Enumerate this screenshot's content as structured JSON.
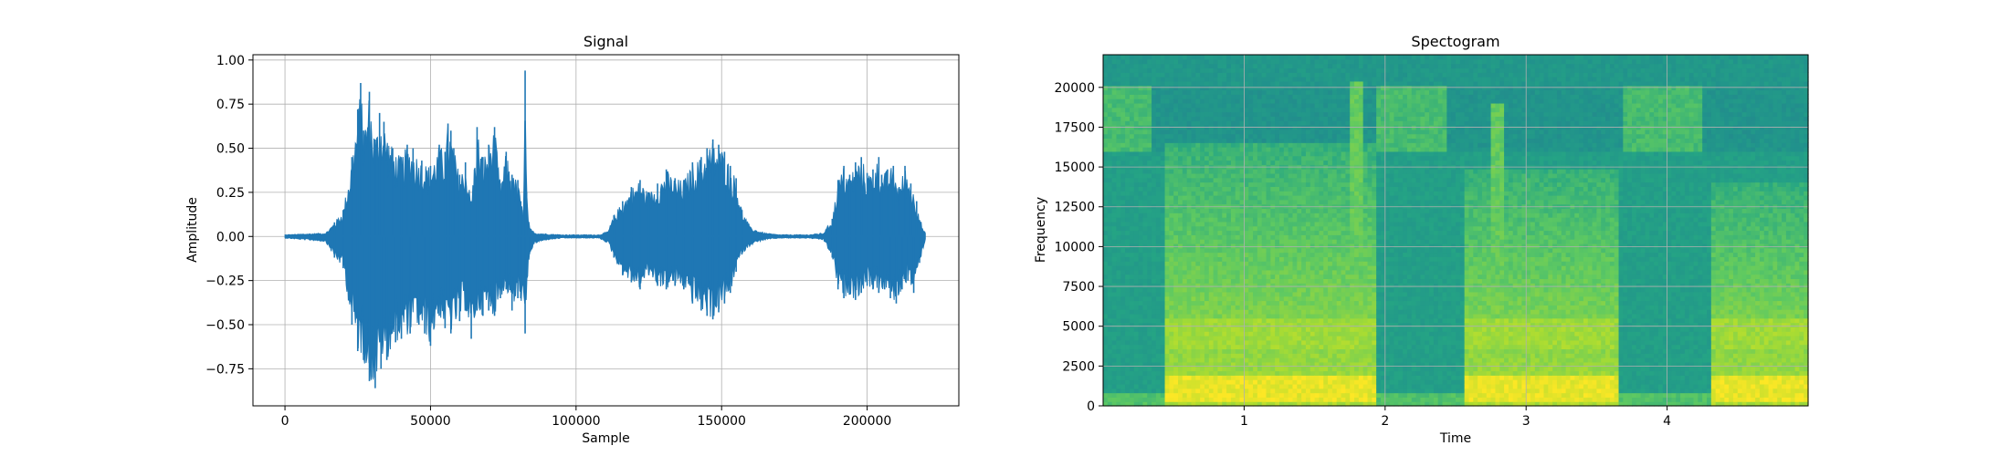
{
  "chart_data": [
    {
      "type": "line",
      "title": "Signal",
      "xlabel": "Sample",
      "ylabel": "Amplitude",
      "xlim": [
        -11000,
        231500
      ],
      "ylim": [
        -0.96,
        1.03
      ],
      "xticks": [
        0,
        50000,
        100000,
        150000,
        200000
      ],
      "xtick_labels": [
        "0",
        "50000",
        "100000",
        "150000",
        "200000"
      ],
      "yticks": [
        -0.75,
        -0.5,
        -0.25,
        0.0,
        0.25,
        0.5,
        0.75,
        1.0
      ],
      "ytick_labels": [
        "−0.75",
        "−0.50",
        "−0.25",
        "0.00",
        "0.25",
        "0.50",
        "0.75",
        "1.00"
      ],
      "grid": true,
      "color": "#1f77b4",
      "series": [
        {
          "envelope_upper": {
            "x": [
              0,
              14000,
              17000,
              20000,
              23000,
              25000,
              26000,
              27000,
              29000,
              31000,
              32500,
              34000,
              37000,
              40000,
              42000,
              44000,
              47000,
              50000,
              53000,
              55000,
              56000,
              57000,
              58000,
              60000,
              62000,
              64000,
              66000,
              68000,
              70000,
              72000,
              74000,
              76000,
              78000,
              80000,
              81000,
              82000,
              82500,
              83000,
              84000,
              86000,
              90000,
              95000,
              100000,
              104000,
              108000,
              111000,
              113000,
              116000,
              119000,
              122000,
              125000,
              128000,
              131000,
              134000,
              137000,
              140000,
              143000,
              145000,
              147000,
              149000,
              151000,
              153000,
              155000,
              157000,
              160000,
              163000,
              165000,
              167000,
              170000,
              175000,
              180000,
              185000,
              188000,
              190000,
              192000,
              194000,
              196000,
              198000,
              200000,
              202000,
              204000,
              205000,
              207000,
              209000,
              211000,
              213000,
              215000,
              217000,
              219000,
              220000
            ],
            "y": [
              0.01,
              0.02,
              0.08,
              0.15,
              0.45,
              0.72,
              0.87,
              0.6,
              0.82,
              0.55,
              0.7,
              0.65,
              0.5,
              0.45,
              0.52,
              0.5,
              0.43,
              0.4,
              0.52,
              0.48,
              0.64,
              0.6,
              0.5,
              0.35,
              0.42,
              0.2,
              0.62,
              0.45,
              0.52,
              0.62,
              0.3,
              0.48,
              0.35,
              0.32,
              0.2,
              0.15,
              0.94,
              0.25,
              0.05,
              0.02,
              0.015,
              0.01,
              0.01,
              0.01,
              0.01,
              0.03,
              0.12,
              0.2,
              0.28,
              0.32,
              0.25,
              0.3,
              0.38,
              0.33,
              0.32,
              0.42,
              0.45,
              0.5,
              0.55,
              0.52,
              0.48,
              0.4,
              0.33,
              0.15,
              0.05,
              0.03,
              0.02,
              0.015,
              0.01,
              0.01,
              0.01,
              0.02,
              0.1,
              0.32,
              0.4,
              0.35,
              0.42,
              0.45,
              0.36,
              0.38,
              0.45,
              0.35,
              0.38,
              0.4,
              0.28,
              0.4,
              0.3,
              0.2,
              0.05,
              0.02
            ]
          },
          "envelope_lower": {
            "x": [
              0,
              14000,
              17000,
              20000,
              23000,
              25000,
              27000,
              29000,
              31000,
              33000,
              35000,
              38000,
              40000,
              43000,
              46000,
              48000,
              50000,
              53000,
              55000,
              57000,
              60000,
              62000,
              64000,
              66000,
              68000,
              70000,
              72000,
              74000,
              76000,
              78000,
              80000,
              81000,
              82500,
              84000,
              86000,
              90000,
              95000,
              100000,
              104000,
              108000,
              111000,
              113000,
              116000,
              119000,
              122000,
              125000,
              128000,
              131000,
              134000,
              137000,
              140000,
              143000,
              145000,
              147000,
              149000,
              151000,
              153000,
              155000,
              157000,
              160000,
              163000,
              165000,
              167000,
              170000,
              175000,
              180000,
              185000,
              188000,
              190000,
              192000,
              194000,
              196000,
              198000,
              200000,
              202000,
              204000,
              206000,
              208000,
              210000,
              212000,
              214000,
              216000,
              218000,
              220000
            ],
            "y": [
              -0.01,
              -0.03,
              -0.12,
              -0.18,
              -0.5,
              -0.65,
              -0.7,
              -0.82,
              -0.86,
              -0.75,
              -0.7,
              -0.6,
              -0.58,
              -0.55,
              -0.5,
              -0.55,
              -0.62,
              -0.45,
              -0.52,
              -0.55,
              -0.48,
              -0.42,
              -0.58,
              -0.42,
              -0.45,
              -0.42,
              -0.45,
              -0.35,
              -0.3,
              -0.42,
              -0.35,
              -0.35,
              -0.55,
              -0.1,
              -0.04,
              -0.02,
              -0.01,
              -0.01,
              -0.01,
              -0.01,
              -0.04,
              -0.12,
              -0.22,
              -0.26,
              -0.3,
              -0.22,
              -0.28,
              -0.3,
              -0.28,
              -0.3,
              -0.38,
              -0.42,
              -0.45,
              -0.47,
              -0.43,
              -0.38,
              -0.32,
              -0.2,
              -0.1,
              -0.05,
              -0.03,
              -0.02,
              -0.015,
              -0.01,
              -0.01,
              -0.01,
              -0.02,
              -0.12,
              -0.3,
              -0.35,
              -0.33,
              -0.36,
              -0.32,
              -0.28,
              -0.3,
              -0.32,
              -0.3,
              -0.35,
              -0.38,
              -0.3,
              -0.25,
              -0.32,
              -0.15,
              -0.02
            ]
          }
        }
      ]
    },
    {
      "type": "heatmap",
      "title": "Spectogram",
      "xlabel": "Time",
      "ylabel": "Frequency",
      "xlim": [
        0,
        5.0
      ],
      "ylim": [
        0,
        22050
      ],
      "xticks": [
        1,
        2,
        3,
        4
      ],
      "xtick_labels": [
        "1",
        "2",
        "3",
        "4"
      ],
      "yticks": [
        0,
        2500,
        5000,
        7500,
        10000,
        12500,
        15000,
        17500,
        20000
      ],
      "ytick_labels": [
        "0",
        "2500",
        "5000",
        "7500",
        "10000",
        "12500",
        "15000",
        "17500",
        "20000"
      ],
      "grid": true,
      "colormap": "viridis",
      "speech_segments": [
        {
          "t_start": 0.45,
          "t_end": 1.95,
          "max_freq": 16500
        },
        {
          "t_start": 2.55,
          "t_end": 3.65,
          "max_freq": 15000
        },
        {
          "t_start": 4.3,
          "t_end": 5.0,
          "max_freq": 14000
        }
      ],
      "high_band_segments": [
        {
          "t_start": 0.0,
          "t_end": 0.35,
          "f_low": 16000,
          "f_high": 20000
        },
        {
          "t_start": 1.95,
          "t_end": 2.45,
          "f_low": 16000,
          "f_high": 20000
        },
        {
          "t_start": 3.7,
          "t_end": 4.25,
          "f_low": 16000,
          "f_high": 20000
        }
      ],
      "transients": [
        {
          "t": 1.8,
          "max_freq": 20500
        },
        {
          "t": 2.8,
          "max_freq": 19000
        }
      ],
      "bright_band": {
        "f_low": 300,
        "f_high": 1800
      }
    }
  ]
}
